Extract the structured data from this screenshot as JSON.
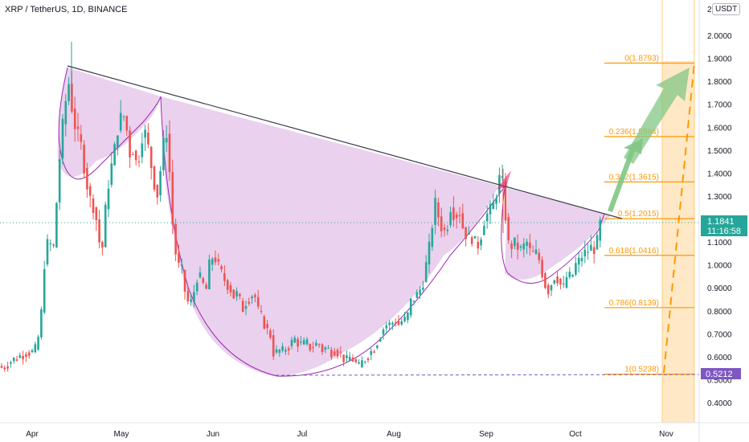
{
  "header": {
    "symbol_title": "XRP / TetherUS, 1D, BINANCE",
    "currency_label": "USDT"
  },
  "chart_data": {
    "type": "candlestick",
    "y_ticks": [
      "2",
      "2.0000",
      "1.9000",
      "1.8000",
      "1.7000",
      "1.6000",
      "1.5000",
      "1.4000",
      "1.3000",
      "1.2000",
      "1.1000",
      "1.0000",
      "0.9000",
      "0.8000",
      "0.7000",
      "0.6000",
      "0.5000",
      "0.4000"
    ],
    "ylim": [
      0.35,
      2.1
    ],
    "x_ticks": [
      "Apr",
      "May",
      "Jun",
      "Jul",
      "Aug",
      "Sep",
      "Oct",
      "Nov"
    ],
    "current_price": "1.1841",
    "countdown": "11:16:58",
    "low_price": "0.5212",
    "fib_levels": [
      {
        "ratio": "0",
        "price": 1.8793,
        "label": "0(1.8793)"
      },
      {
        "ratio": "0.236",
        "price": 1.5594,
        "label": "0.236(1.5594)"
      },
      {
        "ratio": "0.382",
        "price": 1.3615,
        "label": "0.382(1.3615)"
      },
      {
        "ratio": "0.5",
        "price": 1.2015,
        "label": "0.5(1.2015)"
      },
      {
        "ratio": "0.618",
        "price": 1.0416,
        "label": "0.618(1.0416)"
      },
      {
        "ratio": "0.786",
        "price": 0.8139,
        "label": "0.786(0.8139)"
      },
      {
        "ratio": "1",
        "price": 0.5238,
        "label": "1(0.5238)"
      }
    ],
    "colors": {
      "up": "#26a69a",
      "down": "#ef5350",
      "pattern_fill": "#e1bee7",
      "pattern_stroke": "#9c27b0",
      "fib": "#ff9800",
      "fib_zone": "#ffe0b2",
      "arrow": "#81c784",
      "trendline": "#3a3a4a",
      "price_line": "#26a69a",
      "low_line": "#7e57c2"
    }
  }
}
